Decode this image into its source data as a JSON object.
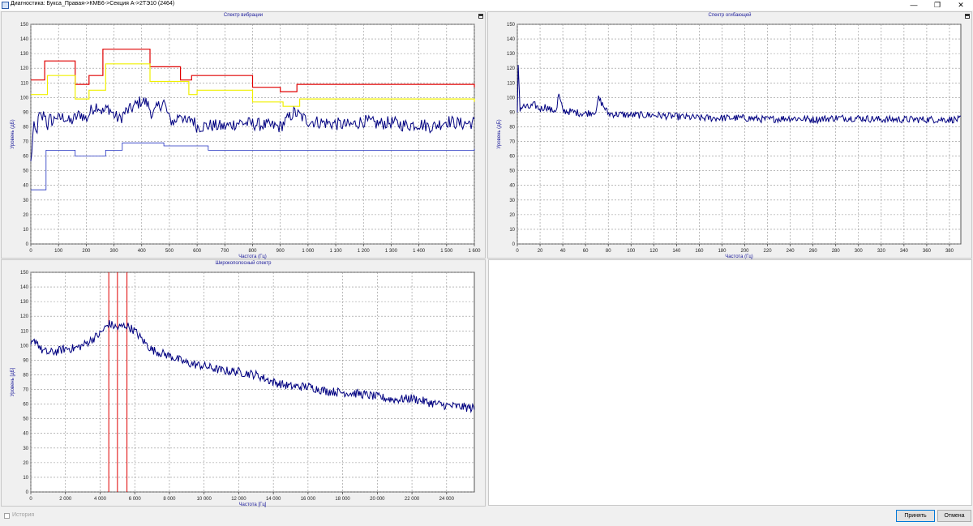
{
  "window": {
    "title": "Диагностика: Букса_Правая->КМБ6->Секция А->2ТЭ10 (2464)",
    "controls": {
      "minimize": "—",
      "maximize": "❐",
      "close": "✕"
    }
  },
  "colors": {
    "spectrum": "#000080",
    "upper_limit": "#e00000",
    "warn_limit": "#f0f000",
    "lower_limit": "#2030c0",
    "band_marker": "#e00000",
    "grid": "#909090",
    "axis_text": "#1a1a9a"
  },
  "panels": {
    "vibration": {
      "title": "Спектр вибрации",
      "chart_data": {
        "type": "line",
        "title": "Спектр вибрации",
        "xlabel": "Частота (Гц)",
        "ylabel": "Уровень (дБ)",
        "xlim": [
          0,
          1600
        ],
        "ylim": [
          0,
          150
        ],
        "grid": true,
        "x_ticks": [
          0,
          100,
          200,
          300,
          400,
          500,
          600,
          700,
          800,
          900,
          1000,
          1100,
          1200,
          1300,
          1400,
          1500,
          1600
        ],
        "x_tick_labels": [
          "0",
          "100",
          "200",
          "300",
          "400",
          "500",
          "600",
          "700",
          "800",
          "900",
          "1 000",
          "1 100",
          "1 200",
          "1 300",
          "1 400",
          "1 500",
          "1 600"
        ],
        "y_ticks": [
          0,
          10,
          20,
          30,
          40,
          50,
          60,
          70,
          80,
          90,
          100,
          110,
          120,
          130,
          140,
          150
        ],
        "series": [
          {
            "name": "spectrum",
            "x": [
              0,
              10,
              20,
              30,
              40,
              50,
              60,
              70,
              80,
              90,
              100,
              120,
              140,
              160,
              180,
              200,
              220,
              240,
              260,
              280,
              300,
              320,
              340,
              360,
              380,
              400,
              420,
              440,
              460,
              480,
              500,
              520,
              540,
              560,
              580,
              600,
              650,
              700,
              750,
              800,
              850,
              900,
              950,
              1000,
              1050,
              1100,
              1150,
              1200,
              1250,
              1300,
              1350,
              1400,
              1450,
              1500,
              1550,
              1600
            ],
            "values": [
              55,
              80,
              75,
              88,
              85,
              90,
              80,
              86,
              83,
              88,
              85,
              87,
              83,
              86,
              89,
              85,
              92,
              95,
              90,
              93,
              88,
              85,
              90,
              92,
              95,
              98,
              96,
              88,
              94,
              97,
              85,
              83,
              90,
              82,
              86,
              80,
              81,
              80,
              83,
              82,
              81,
              80,
              90,
              84,
              83,
              82,
              81,
              84,
              82,
              83,
              81,
              82,
              80,
              84,
              82,
              83
            ]
          },
          {
            "name": "upper",
            "step_x": [
              0,
              50,
              160,
              210,
              260,
              430,
              540,
              580,
              800,
              900,
              960,
              1600
            ],
            "values": [
              112,
              125,
              109,
              115,
              133,
              121,
              112,
              115,
              107,
              104,
              109,
              107
            ]
          },
          {
            "name": "warn",
            "step_x": [
              0,
              60,
              160,
              210,
              270,
              430,
              570,
              600,
              800,
              910,
              970,
              1600
            ],
            "values": [
              102,
              115,
              99,
              105,
              123,
              111,
              102,
              105,
              97,
              94,
              99,
              97
            ]
          },
          {
            "name": "lower",
            "step_x": [
              0,
              55,
              160,
              270,
              330,
              480,
              640,
              1600
            ],
            "values": [
              37,
              64,
              60,
              64,
              69,
              67,
              64,
              65
            ]
          }
        ]
      }
    },
    "envelope": {
      "title": "Спектр огибающей",
      "chart_data": {
        "type": "line",
        "title": "Спектр огибающей",
        "xlabel": "Частота (Гц)",
        "ylabel": "Уровень (дБ)",
        "xlim": [
          0,
          390
        ],
        "ylim": [
          0,
          150
        ],
        "grid": true,
        "x_ticks": [
          0,
          20,
          40,
          60,
          80,
          100,
          120,
          140,
          160,
          180,
          200,
          220,
          240,
          260,
          280,
          300,
          320,
          340,
          360,
          380
        ],
        "x_tick_labels": [
          "0",
          "20",
          "40",
          "60",
          "80",
          "100",
          "120",
          "140",
          "160",
          "180",
          "200",
          "220",
          "240",
          "260",
          "280",
          "300",
          "320",
          "340",
          "360",
          "380"
        ],
        "y_ticks": [
          0,
          10,
          20,
          30,
          40,
          50,
          60,
          70,
          80,
          90,
          100,
          110,
          120,
          130,
          140,
          150
        ],
        "series": [
          {
            "name": "envelope",
            "x": [
              0,
              1,
              2,
              5,
              10,
              15,
              20,
              25,
              30,
              35,
              36,
              40,
              50,
              60,
              70,
              71,
              80,
              100,
              120,
              140,
              160,
              180,
              200,
              220,
              240,
              260,
              280,
              300,
              320,
              340,
              360,
              380,
              390
            ],
            "values": [
              88,
              131,
              92,
              94,
              93,
              95,
              92,
              94,
              91,
              92,
              103,
              91,
              90,
              89,
              91,
              100,
              89,
              88,
              88,
              87,
              86,
              86,
              86,
              85,
              86,
              85,
              86,
              86,
              85,
              85,
              85,
              85,
              85
            ]
          }
        ]
      }
    },
    "broadband": {
      "title": "Широкополосный спектр",
      "chart_data": {
        "type": "line",
        "title": "Широкополосный спектр",
        "xlabel": "Частота [Гц]",
        "ylabel": "Уровень [дБ]",
        "xlim": [
          0,
          25600
        ],
        "ylim": [
          0,
          150
        ],
        "grid": true,
        "x_ticks": [
          0,
          2000,
          4000,
          6000,
          8000,
          10000,
          12000,
          14000,
          16000,
          18000,
          20000,
          22000,
          24000
        ],
        "x_tick_labels": [
          "0",
          "2 000",
          "4 000",
          "6 000",
          "8 000",
          "10 000",
          "12 000",
          "14 000",
          "16 000",
          "18 000",
          "20 000",
          "22 000",
          "24 000"
        ],
        "y_ticks": [
          0,
          10,
          20,
          30,
          40,
          50,
          60,
          70,
          80,
          90,
          100,
          110,
          120,
          130,
          140,
          150
        ],
        "markers_x": [
          4500,
          5000,
          5550
        ],
        "series": [
          {
            "name": "broadband",
            "x": [
              0,
              300,
              600,
              1000,
              1500,
              2000,
              2500,
              3000,
              3500,
              4000,
              4500,
              5000,
              5500,
              6000,
              6500,
              7000,
              8000,
              9000,
              10000,
              11000,
              12000,
              13000,
              14000,
              15000,
              16000,
              17000,
              18000,
              19000,
              20000,
              21000,
              22000,
              23000,
              24000,
              25000,
              25600
            ],
            "values": [
              100,
              104,
              97,
              95,
              96,
              98,
              98,
              100,
              104,
              108,
              115,
              112,
              114,
              110,
              103,
              97,
              93,
              88,
              86,
              83,
              82,
              80,
              75,
              72,
              72,
              69,
              68,
              67,
              65,
              63,
              64,
              61,
              59,
              58,
              57
            ]
          }
        ]
      }
    }
  },
  "footer": {
    "history_label": "История",
    "ok_label": "Принять",
    "cancel_label": "Отмена"
  }
}
